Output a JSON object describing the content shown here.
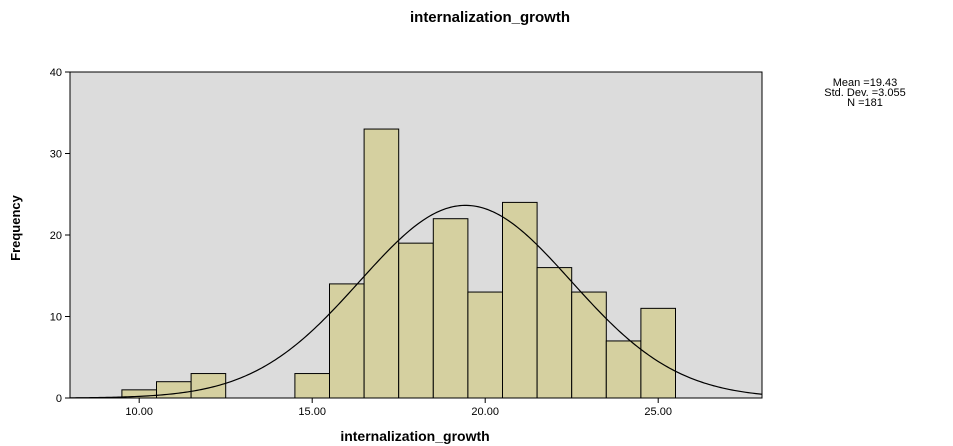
{
  "chart_data": {
    "type": "bar",
    "title": "internalization_growth",
    "xlabel": "internalization_growth",
    "ylabel": "Frequency",
    "xlim": [
      8,
      28
    ],
    "ylim": [
      0,
      40
    ],
    "xticks": [
      10,
      15,
      20,
      25
    ],
    "xtick_labels": [
      "10.00",
      "15.00",
      "20.00",
      "25.00"
    ],
    "yticks": [
      0,
      10,
      20,
      30,
      40
    ],
    "ytick_labels": [
      "0",
      "10",
      "20",
      "30",
      "40"
    ],
    "grid": false,
    "bins": [
      {
        "start": 9.5,
        "end": 10.5,
        "count": 1
      },
      {
        "start": 10.5,
        "end": 11.5,
        "count": 2
      },
      {
        "start": 11.5,
        "end": 12.5,
        "count": 3
      },
      {
        "start": 14.5,
        "end": 15.5,
        "count": 3
      },
      {
        "start": 15.5,
        "end": 16.5,
        "count": 14
      },
      {
        "start": 16.5,
        "end": 17.5,
        "count": 33
      },
      {
        "start": 17.5,
        "end": 18.5,
        "count": 19
      },
      {
        "start": 18.5,
        "end": 19.5,
        "count": 22
      },
      {
        "start": 19.5,
        "end": 20.5,
        "count": 13
      },
      {
        "start": 20.5,
        "end": 21.5,
        "count": 24
      },
      {
        "start": 21.5,
        "end": 22.5,
        "count": 16
      },
      {
        "start": 22.5,
        "end": 23.5,
        "count": 13
      },
      {
        "start": 23.5,
        "end": 24.5,
        "count": 7
      },
      {
        "start": 24.5,
        "end": 25.5,
        "count": 11
      }
    ],
    "normal_curve": {
      "mean": 19.43,
      "sd": 3.055,
      "n": 181,
      "bin_width": 1
    },
    "stats": {
      "mean_label": "Mean =19.43",
      "sd_label": "Std. Dev. =3.055",
      "n_label": "N =181"
    },
    "legend_position": "top-right",
    "colors": {
      "plot_background": "#dcdcdc",
      "bar_fill": "#d5d0a0",
      "bar_stroke": "#000000",
      "curve": "#000000"
    }
  }
}
